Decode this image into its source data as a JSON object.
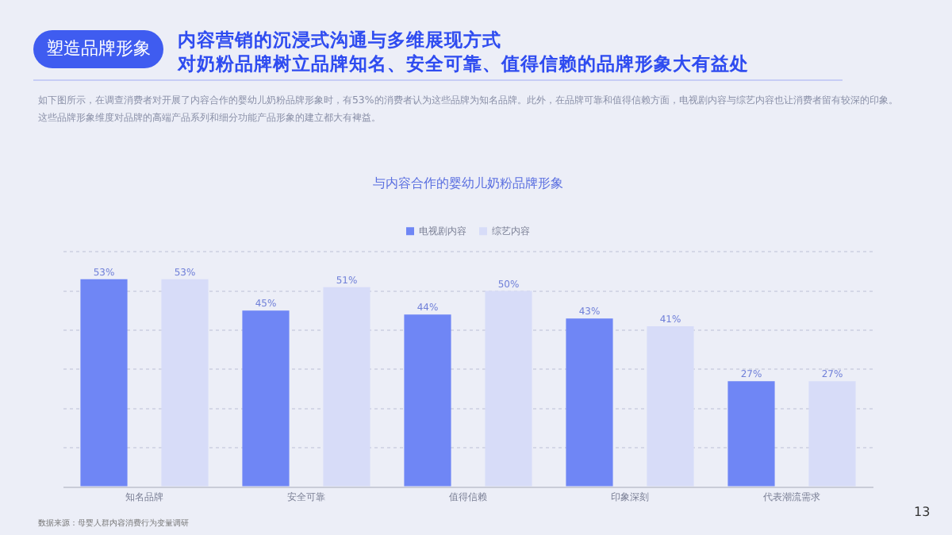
{
  "chart_data": {
    "type": "bar",
    "title": "与内容合作的婴幼儿奶粉品牌形象",
    "annotations": [
      "塑造品牌形象",
      "内容营销的沉浸式沟通与多维展现方式",
      "对奶粉品牌树立品牌知名、安全可靠、值得信赖的品牌形象大有益处",
      "如下图所示，在调查消费者对开展了内容合作的婴幼儿奶粉品牌形象时，有53%的消费者认为这些品牌为知名品牌。此外，在品牌可靠和值得信赖方面，电视剧内容与综艺内容也让消费者留有较深的印象。",
      "这些品牌形象维度对品牌的高端产品系列和细分功能产品形象的建立都大有裨益。",
      "数据来源：母婴人群内容消费行为变量调研",
      "13"
    ],
    "categories": [
      "知名品牌",
      "安全可靠",
      "值得信赖",
      "印象深刻",
      "代表潮流需求"
    ],
    "series": [
      {
        "name": "电视剧内容",
        "color": "#6f86f5",
        "values": [
          53,
          45,
          44,
          43,
          27
        ],
        "value_labels": [
          "53%",
          "45%",
          "44%",
          "43%",
          "27%"
        ]
      },
      {
        "name": "综艺内容",
        "color": "#d7dcf8",
        "values": [
          53,
          51,
          50,
          41,
          27
        ],
        "value_labels": [
          "53%",
          "51%",
          "50%",
          "41%",
          "27%"
        ]
      }
    ],
    "ylim": [
      0,
      60
    ],
    "yticks": [
      0,
      10,
      20,
      30,
      40,
      50,
      60
    ],
    "tick_labels": "x",
    "grid": "y",
    "legend": "top"
  }
}
